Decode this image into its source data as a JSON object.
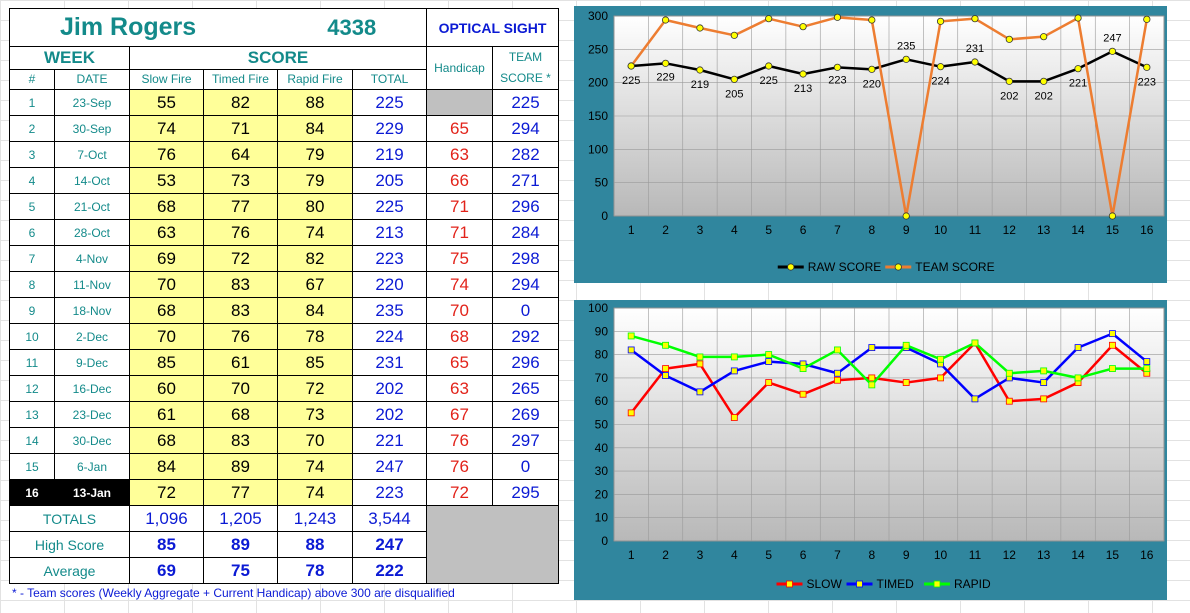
{
  "header": {
    "name": "Jim Rogers",
    "number": "4338",
    "sight": "OPTICAL SIGHT"
  },
  "labels": {
    "week": "WEEK",
    "score": "SCORE",
    "hash": "#",
    "date": "DATE",
    "slow": "Slow Fire",
    "timed": "Timed Fire",
    "rapid": "Rapid Fire",
    "total": "TOTAL",
    "handicap": "Handicap",
    "team_top": "TEAM",
    "team_bottom": "SCORE *",
    "totals": "TOTALS",
    "high": "High Score",
    "average": "Average"
  },
  "rows": [
    {
      "num": "1",
      "date": "23-Sep",
      "slow": "55",
      "timed": "82",
      "rapid": "88",
      "total": "225",
      "handicap": "",
      "team": "225"
    },
    {
      "num": "2",
      "date": "30-Sep",
      "slow": "74",
      "timed": "71",
      "rapid": "84",
      "total": "229",
      "handicap": "65",
      "team": "294"
    },
    {
      "num": "3",
      "date": "7-Oct",
      "slow": "76",
      "timed": "64",
      "rapid": "79",
      "total": "219",
      "handicap": "63",
      "team": "282"
    },
    {
      "num": "4",
      "date": "14-Oct",
      "slow": "53",
      "timed": "73",
      "rapid": "79",
      "total": "205",
      "handicap": "66",
      "team": "271"
    },
    {
      "num": "5",
      "date": "21-Oct",
      "slow": "68",
      "timed": "77",
      "rapid": "80",
      "total": "225",
      "handicap": "71",
      "team": "296"
    },
    {
      "num": "6",
      "date": "28-Oct",
      "slow": "63",
      "timed": "76",
      "rapid": "74",
      "total": "213",
      "handicap": "71",
      "team": "284"
    },
    {
      "num": "7",
      "date": "4-Nov",
      "slow": "69",
      "timed": "72",
      "rapid": "82",
      "total": "223",
      "handicap": "75",
      "team": "298"
    },
    {
      "num": "8",
      "date": "11-Nov",
      "slow": "70",
      "timed": "83",
      "rapid": "67",
      "total": "220",
      "handicap": "74",
      "team": "294"
    },
    {
      "num": "9",
      "date": "18-Nov",
      "slow": "68",
      "timed": "83",
      "rapid": "84",
      "total": "235",
      "handicap": "70",
      "team": "0"
    },
    {
      "num": "10",
      "date": "2-Dec",
      "slow": "70",
      "timed": "76",
      "rapid": "78",
      "total": "224",
      "handicap": "68",
      "team": "292"
    },
    {
      "num": "11",
      "date": "9-Dec",
      "slow": "85",
      "timed": "61",
      "rapid": "85",
      "total": "231",
      "handicap": "65",
      "team": "296"
    },
    {
      "num": "12",
      "date": "16-Dec",
      "slow": "60",
      "timed": "70",
      "rapid": "72",
      "total": "202",
      "handicap": "63",
      "team": "265"
    },
    {
      "num": "13",
      "date": "23-Dec",
      "slow": "61",
      "timed": "68",
      "rapid": "73",
      "total": "202",
      "handicap": "67",
      "team": "269"
    },
    {
      "num": "14",
      "date": "30-Dec",
      "slow": "68",
      "timed": "83",
      "rapid": "70",
      "total": "221",
      "handicap": "76",
      "team": "297"
    },
    {
      "num": "15",
      "date": "6-Jan",
      "slow": "84",
      "timed": "89",
      "rapid": "74",
      "total": "247",
      "handicap": "76",
      "team": "0"
    },
    {
      "num": "16",
      "date": "13-Jan",
      "slow": "72",
      "timed": "77",
      "rapid": "74",
      "total": "223",
      "handicap": "72",
      "team": "295"
    }
  ],
  "totals": {
    "slow": "1,096",
    "timed": "1,205",
    "rapid": "1,243",
    "total": "3,544"
  },
  "high": {
    "slow": "85",
    "timed": "89",
    "rapid": "88",
    "total": "247"
  },
  "average": {
    "slow": "69",
    "timed": "75",
    "rapid": "78",
    "total": "222"
  },
  "footnote": "* - Team scores (Weekly Aggregate + Current Handicap) above 300 are disqualified",
  "colors": {
    "raw": "#000000",
    "team": "#ed7d31",
    "slow": "#ff0000",
    "timed": "#0000ff",
    "rapid": "#00ff00",
    "marker": "#ffff00",
    "frame": "#30869e"
  },
  "chart_data": [
    {
      "type": "line",
      "x": [
        1,
        2,
        3,
        4,
        5,
        6,
        7,
        8,
        9,
        10,
        11,
        12,
        13,
        14,
        15,
        16
      ],
      "ylim": [
        0,
        300
      ],
      "yticks": [
        0,
        50,
        100,
        150,
        200,
        250,
        300
      ],
      "series": [
        {
          "name": "RAW SCORE",
          "values": [
            225,
            229,
            219,
            205,
            225,
            213,
            223,
            220,
            235,
            224,
            231,
            202,
            202,
            221,
            247,
            223
          ],
          "data_labels": true
        },
        {
          "name": "TEAM SCORE",
          "values": [
            225,
            294,
            282,
            271,
            296,
            284,
            298,
            294,
            0,
            292,
            296,
            265,
            269,
            297,
            0,
            295
          ],
          "data_labels": false
        }
      ],
      "legend_position": "bottom",
      "grid": true
    },
    {
      "type": "line",
      "x": [
        1,
        2,
        3,
        4,
        5,
        6,
        7,
        8,
        9,
        10,
        11,
        12,
        13,
        14,
        15,
        16
      ],
      "ylim": [
        0,
        100
      ],
      "yticks": [
        0,
        10,
        20,
        30,
        40,
        50,
        60,
        70,
        80,
        90,
        100
      ],
      "series": [
        {
          "name": "SLOW",
          "values": [
            55,
            74,
            76,
            53,
            68,
            63,
            69,
            70,
            68,
            70,
            85,
            60,
            61,
            68,
            84,
            72
          ]
        },
        {
          "name": "TIMED",
          "values": [
            82,
            71,
            64,
            73,
            77,
            76,
            72,
            83,
            83,
            76,
            61,
            70,
            68,
            83,
            89,
            77
          ]
        },
        {
          "name": "RAPID",
          "values": [
            88,
            84,
            79,
            79,
            80,
            74,
            82,
            67,
            84,
            78,
            85,
            72,
            73,
            70,
            74,
            74
          ]
        }
      ],
      "legend_position": "bottom",
      "grid": true
    }
  ]
}
